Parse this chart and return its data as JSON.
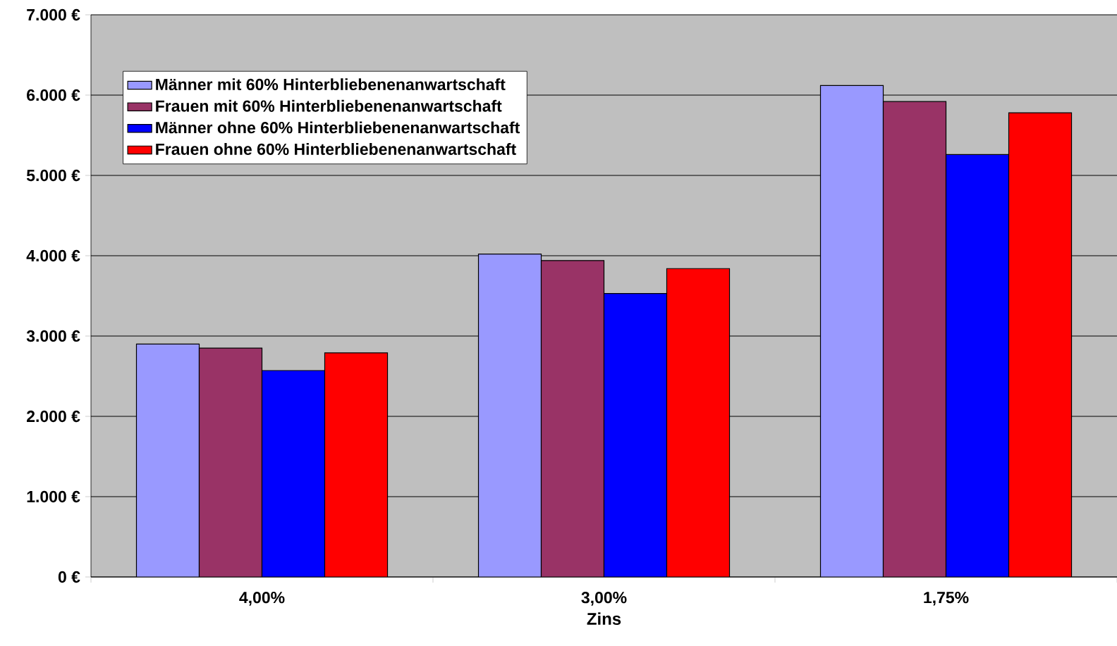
{
  "chart_data": {
    "type": "bar",
    "xlabel": "Zins",
    "categories": [
      "4,00%",
      "3,00%",
      "1,75%"
    ],
    "series": [
      {
        "name": "Männer mit 60% Hinterbliebenenanwartschaft",
        "color": "#9999ff",
        "values": [
          2900,
          4020,
          6120
        ]
      },
      {
        "name": "Frauen mit 60% Hinterbliebenenanwartschaft",
        "color": "#993366",
        "values": [
          2850,
          3940,
          5920
        ]
      },
      {
        "name": "Männer ohne 60% Hinterbliebenenanwartschaft",
        "color": "#0000ff",
        "values": [
          2570,
          3530,
          5260
        ]
      },
      {
        "name": "Frauen ohne 60% Hinterbliebenenanwartschaft",
        "color": "#ff0000",
        "values": [
          2790,
          3840,
          5780
        ]
      }
    ],
    "ylim": [
      0,
      7000
    ],
    "yticks": [
      {
        "value": 0,
        "label": "0 €"
      },
      {
        "value": 1000,
        "label": "1.000 €"
      },
      {
        "value": 2000,
        "label": "2.000 €"
      },
      {
        "value": 3000,
        "label": "3.000 €"
      },
      {
        "value": 4000,
        "label": "4.000 €"
      },
      {
        "value": 5000,
        "label": "5.000 €"
      },
      {
        "value": 6000,
        "label": "6.000 €"
      },
      {
        "value": 7000,
        "label": "7.000 €"
      }
    ],
    "grid": "y",
    "legend": "top left"
  }
}
